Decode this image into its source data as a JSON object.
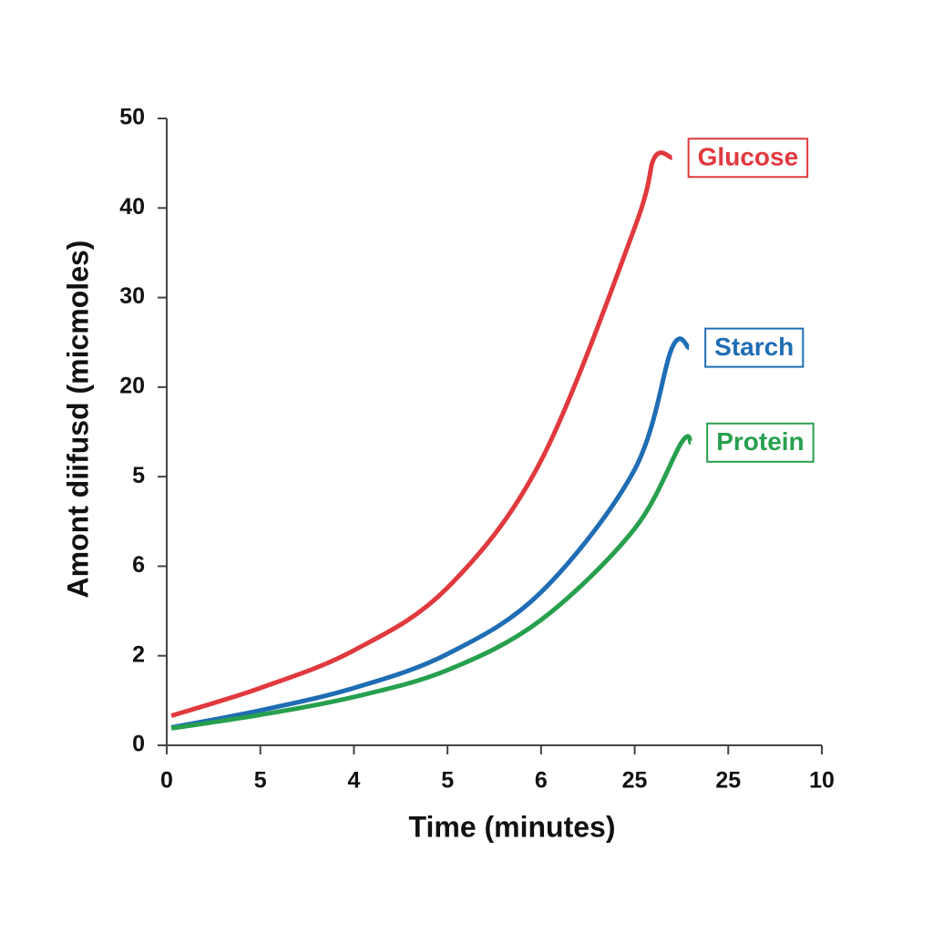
{
  "chart_data": {
    "type": "line",
    "x_label": "Time (minutes)",
    "y_label": "Amont diifusd (micmoles)",
    "xlim": [
      0,
      7
    ],
    "ylim": [
      0,
      7
    ],
    "xticks": [
      {
        "value": 0,
        "label": "0"
      },
      {
        "value": 1,
        "label": "5"
      },
      {
        "value": 2,
        "label": "4"
      },
      {
        "value": 3,
        "label": "5"
      },
      {
        "value": 4,
        "label": "6"
      },
      {
        "value": 5,
        "label": "25"
      },
      {
        "value": 6,
        "label": "25"
      },
      {
        "value": 7,
        "label": "10"
      }
    ],
    "yticks": [
      {
        "value": 0,
        "label": "0"
      },
      {
        "value": 1,
        "label": "2"
      },
      {
        "value": 2,
        "label": "6"
      },
      {
        "value": 3,
        "label": "5"
      },
      {
        "value": 4,
        "label": "20"
      },
      {
        "value": 5,
        "label": "30"
      },
      {
        "value": 6,
        "label": "40"
      },
      {
        "value": 7,
        "label": "50"
      }
    ],
    "series": [
      {
        "name": "Glucose",
        "color": "#e0393e",
        "x": [
          0.05,
          1,
          2,
          3,
          4,
          5,
          5.21,
          5.4
        ],
        "values": [
          0.33,
          0.64,
          1.06,
          1.76,
          3.18,
          5.78,
          6.56,
          6.56
        ]
      },
      {
        "name": "Starch",
        "color": "#1f6db4",
        "x": [
          0.05,
          1,
          2,
          3,
          4,
          5,
          5.4,
          5.58
        ],
        "values": [
          0.2,
          0.39,
          0.64,
          1.02,
          1.71,
          3.08,
          4.44,
          4.44
        ]
      },
      {
        "name": "Protein",
        "color": "#27a04e",
        "x": [
          0.05,
          1,
          2,
          3,
          4,
          5,
          5.5,
          5.6
        ],
        "values": [
          0.19,
          0.34,
          0.54,
          0.84,
          1.4,
          2.42,
          3.38,
          3.38
        ]
      }
    ]
  }
}
